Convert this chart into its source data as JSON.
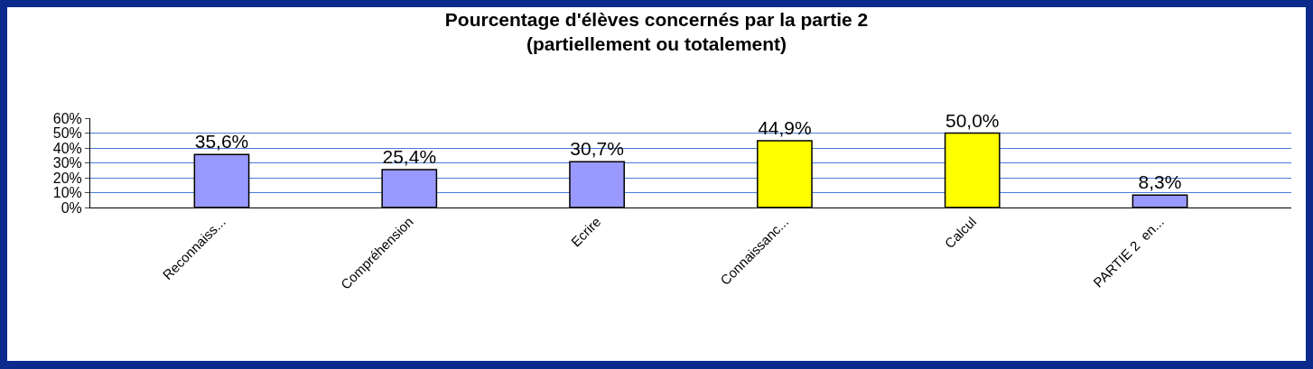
{
  "chart_data": {
    "type": "bar",
    "title": "Pourcentage d'élèves concernés par la partie 2\n(partiellement ou totalement)",
    "categories": [
      "Reconnaiss...",
      "Compréhension",
      "Ecrire",
      "Connaissanc...",
      "Calcul",
      "PARTIE 2  en..."
    ],
    "values": [
      35.6,
      25.4,
      30.7,
      44.9,
      50.0,
      8.3
    ],
    "colors": [
      "#9999ff",
      "#9999ff",
      "#9999ff",
      "#ffff00",
      "#ffff00",
      "#9999ff"
    ],
    "value_labels": [
      "35,6%",
      "25,4%",
      "30,7%",
      "44,9%",
      "50,0%",
      "8,3%"
    ],
    "ylim": [
      0,
      60
    ],
    "yticks": [
      {
        "value": 0,
        "label": "0%"
      },
      {
        "value": 10,
        "label": "10%"
      },
      {
        "value": 20,
        "label": "20%"
      },
      {
        "value": 30,
        "label": "30%"
      },
      {
        "value": 40,
        "label": "40%"
      },
      {
        "value": 50,
        "label": "50%"
      },
      {
        "value": 60,
        "label": "60%"
      }
    ],
    "grid": "y",
    "legend": false
  }
}
